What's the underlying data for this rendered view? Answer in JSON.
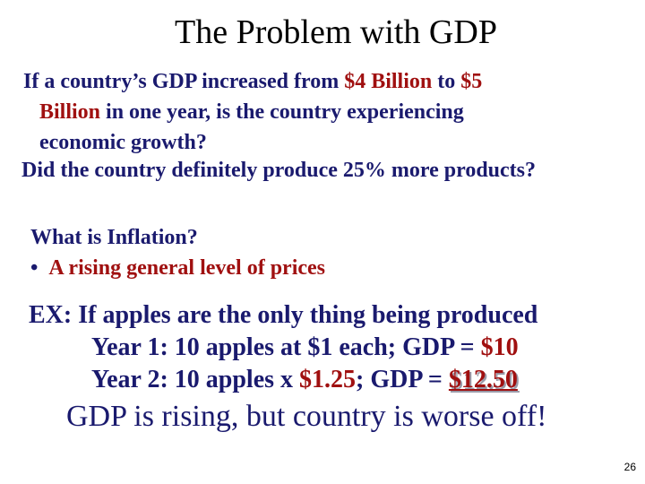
{
  "title": "The Problem with GDP",
  "question1": {
    "line1_a": "If a country’s GDP increased from ",
    "line1_b": "$4 Billion",
    "line1_c": " to ",
    "line1_d": "$5",
    "line2_a": "Billion",
    "line2_b": " in one year, is the country experiencing",
    "line3": "economic growth?"
  },
  "question2": "Did the country definitely produce 25% more products?",
  "inflation": {
    "question": "What is Inflation?",
    "bullet": "•",
    "answer": "A rising general level of prices"
  },
  "example": {
    "intro": "EX: If apples are the only thing being produced",
    "year1_a": "Year 1: 10 apples at $1 each; GDP = ",
    "year1_b": "$10",
    "year2_a": "Year 2: 10 apples x ",
    "year2_b": "$1.25",
    "year2_c": "; GDP = ",
    "year2_d": "$12.50"
  },
  "conclusion": "GDP is rising, but country is worse off!",
  "page_number": "26",
  "colors": {
    "navy": "#1a1a6e",
    "red": "#a01010"
  }
}
